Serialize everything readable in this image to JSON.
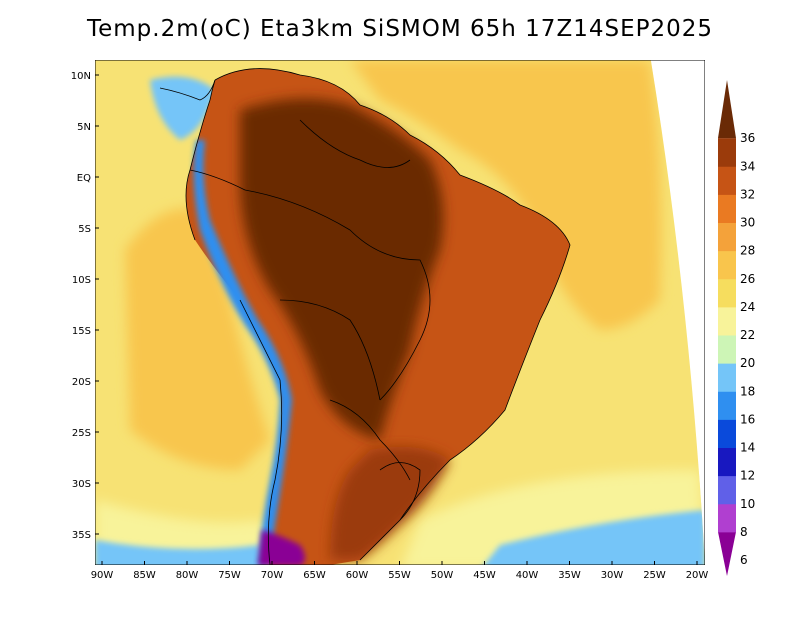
{
  "title": "Temp.2m(oC) Eta3km SiSMOM 65h 17Z14SEP2025",
  "lat_labels": [
    "10N",
    "5N",
    "EQ",
    "5S",
    "10S",
    "15S",
    "20S",
    "25S",
    "30S",
    "35S"
  ],
  "lon_labels": [
    "90W",
    "85W",
    "80W",
    "75W",
    "70W",
    "65W",
    "60W",
    "55W",
    "50W",
    "45W",
    "40W",
    "35W",
    "30W",
    "25W",
    "20W"
  ],
  "colorbar": {
    "unit": "oC",
    "levels": [
      "6",
      "8",
      "10",
      "12",
      "14",
      "16",
      "18",
      "20",
      "22",
      "24",
      "26",
      "28",
      "30",
      "32",
      "34",
      "36"
    ],
    "colors": [
      "#8a0095",
      "#b03fd0",
      "#6060e8",
      "#1818c0",
      "#0a4adb",
      "#2f8ff0",
      "#74c5f8",
      "#cdf5b6",
      "#f8f39a",
      "#f6dd5e",
      "#f9c54c",
      "#f4a23a",
      "#ea7a22",
      "#c65415",
      "#9b3b0b",
      "#6a2a06"
    ]
  },
  "map_colors": {
    "ocean_warm": "#f8c64e",
    "ocean_mid": "#f7e274",
    "ocean_cool": "#f8f39a",
    "ocean_cold": "#cdf5b6",
    "ocean_coldest": "#74c5f8",
    "land_hot": "#6a2a06",
    "land_warm": "#9b3b0b",
    "land_mild": "#c65415",
    "andes_cold": "#2f8ff0",
    "andes_coldest": "#8a0095",
    "border": "#000000"
  }
}
